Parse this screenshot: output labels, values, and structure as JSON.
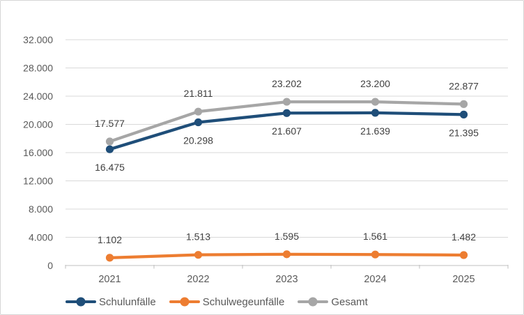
{
  "chart_data": {
    "type": "line",
    "categories": [
      "2021",
      "2022",
      "2023",
      "2024",
      "2025"
    ],
    "series": [
      {
        "name": "Schulunfälle",
        "color": "#1F4E79",
        "values": [
          16475,
          20298,
          21607,
          21639,
          21395
        ],
        "labels": [
          "16.475",
          "20.298",
          "21.607",
          "21.639",
          "21.395"
        ],
        "label_position": "below"
      },
      {
        "name": "Schulwegeunfälle",
        "color": "#ED7D31",
        "values": [
          1102,
          1513,
          1595,
          1561,
          1482
        ],
        "labels": [
          "1.102",
          "1.513",
          "1.595",
          "1.561",
          "1.482"
        ],
        "label_position": "above"
      },
      {
        "name": "Gesamt",
        "color": "#A6A6A6",
        "values": [
          17577,
          21811,
          23202,
          23200,
          22877
        ],
        "labels": [
          "17.577",
          "21.811",
          "23.202",
          "23.200",
          "22.877"
        ],
        "label_position": "above"
      }
    ],
    "title": "",
    "xlabel": "",
    "ylabel": "",
    "ylim": [
      0,
      32000
    ],
    "ytick_step": 4000,
    "ytick_labels": [
      "0",
      "4.000",
      "8.000",
      "12.000",
      "16.000",
      "20.000",
      "24.000",
      "28.000",
      "32.000"
    ],
    "grid": true,
    "legend_position": "bottom",
    "colors": {
      "gridline": "#D9D9D9",
      "axis_line": "#BFBFBF",
      "axis_label": "#595959",
      "data_label": "#404040",
      "frame_border": "#D5D5D5"
    }
  }
}
